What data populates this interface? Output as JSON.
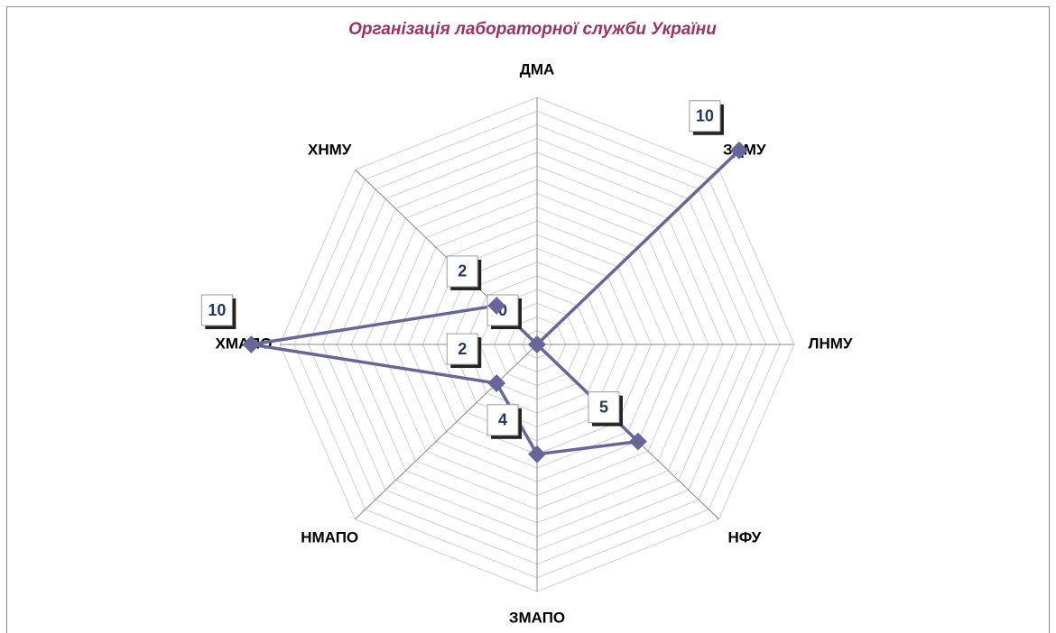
{
  "chart_data": {
    "type": "radar",
    "title": "Організація лабораторної служби України",
    "categories": [
      "ДМА",
      "ЗДМУ",
      "ЛНМУ",
      "НФУ",
      "ЗМАПО",
      "НМАПО",
      "ХМАПО",
      "ХНМУ"
    ],
    "series": [
      {
        "name": "Організація лабораторної служби України",
        "color": "#66669a",
        "values": [
          0,
          10,
          0,
          5,
          4,
          2,
          10,
          2
        ]
      }
    ],
    "ylim": [
      0,
      9
    ],
    "yticks": [
      0,
      0.5,
      1,
      1.5,
      2,
      2.5,
      3,
      3.5,
      4,
      4.5,
      5,
      5.5,
      6,
      6.5,
      7,
      7.5,
      8,
      8.5,
      9
    ],
    "grid": true
  }
}
